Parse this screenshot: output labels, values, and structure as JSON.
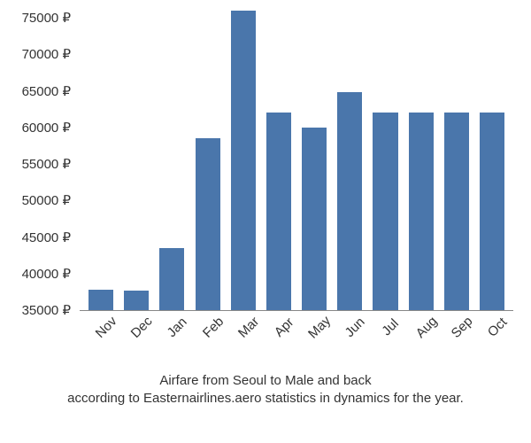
{
  "chart": {
    "type": "bar",
    "categories": [
      "Nov",
      "Dec",
      "Jan",
      "Feb",
      "Mar",
      "Apr",
      "May",
      "Jun",
      "Jul",
      "Aug",
      "Sep",
      "Oct"
    ],
    "values": [
      37800,
      37700,
      43500,
      58500,
      76000,
      62000,
      60000,
      64800,
      62000,
      62000,
      62000,
      62000
    ],
    "bar_color": "#4a76ab",
    "background_color": "#ffffff",
    "axis_color": "#888888",
    "text_color": "#333333",
    "currency_suffix": " ₽",
    "ylim": [
      35000,
      75000
    ],
    "ytick_step": 5000,
    "yticks": [
      35000,
      40000,
      45000,
      50000,
      55000,
      60000,
      65000,
      70000,
      75000
    ],
    "bar_width_ratio": 0.7,
    "tick_fontsize": 15,
    "caption_fontsize": 15,
    "xlabel_rotation_deg": -45
  },
  "caption": {
    "line1": "Airfare from Seoul to Male and back",
    "line2": "according to Easternairlines.aero statistics in dynamics for the year."
  }
}
